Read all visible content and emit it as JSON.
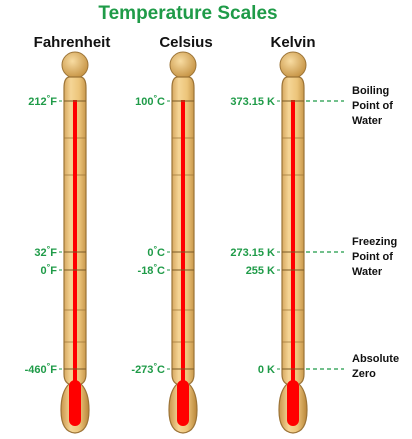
{
  "title": "Temperature Scales",
  "colors": {
    "title": "#1f9b48",
    "label": "#1f9b48",
    "mercury": "#ff0000",
    "tube": "#e8c07a",
    "tube_edge": "#a88144",
    "guide_line": "#1f9b48"
  },
  "scales": [
    {
      "name": "Fahrenheit",
      "marks": [
        {
          "value": "212",
          "unit": "F"
        },
        {
          "value": "32",
          "unit": "F"
        },
        {
          "value": "0",
          "unit": "F"
        },
        {
          "value": "-460",
          "unit": "F"
        }
      ]
    },
    {
      "name": "Celsius",
      "marks": [
        {
          "value": "100",
          "unit": "C"
        },
        {
          "value": "0",
          "unit": "C"
        },
        {
          "value": "-18",
          "unit": "C"
        },
        {
          "value": "-273",
          "unit": "C"
        }
      ]
    },
    {
      "name": "Kelvin",
      "marks": [
        {
          "value": "373.15",
          "unit": "K"
        },
        {
          "value": "273.15",
          "unit": "K"
        },
        {
          "value": "255",
          "unit": "K"
        },
        {
          "value": "0",
          "unit": "K"
        }
      ]
    }
  ],
  "annotations": [
    {
      "lines": [
        "Boiling",
        "Point of",
        "Water"
      ]
    },
    {
      "lines": [
        "Freezing",
        "Point of",
        "Water"
      ]
    },
    {
      "lines": [
        "Absolute",
        "Zero"
      ]
    }
  ]
}
